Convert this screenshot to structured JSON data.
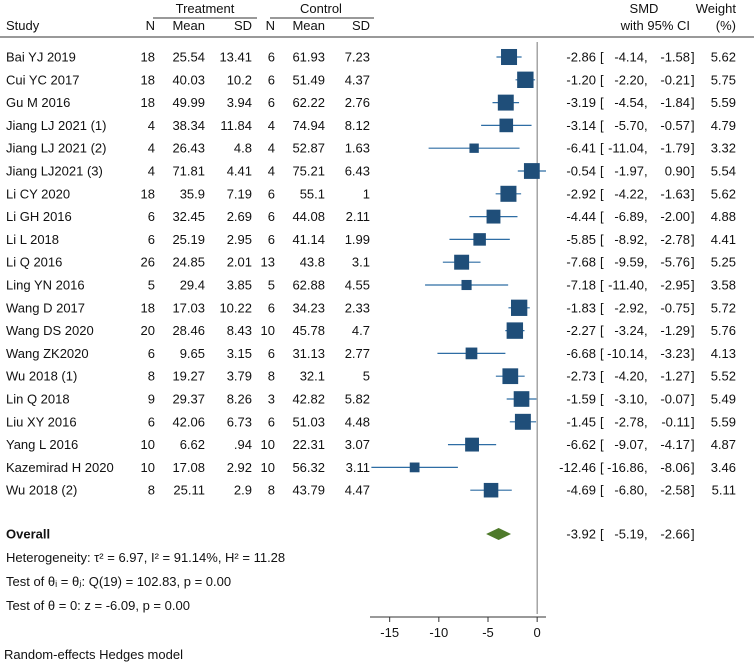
{
  "chart_data": {
    "type": "forest",
    "model_note": "Random-effects Hedges model",
    "group_headers": {
      "treatment": "Treatment",
      "control": "Control"
    },
    "column_headers": {
      "study": "Study",
      "n_t": "N",
      "mean_t": "Mean",
      "sd_t": "SD",
      "n_c": "N",
      "mean_c": "Mean",
      "sd_c": "SD",
      "effect_line1": "SMD",
      "effect_line2": "with 95% CI",
      "weight_line1": "Weight",
      "weight_line2": "(%)"
    },
    "studies": [
      {
        "study": "Bai YJ 2019",
        "n_t": "18",
        "mean_t": "25.54",
        "sd_t": "13.41",
        "n_c": "6",
        "mean_c": "61.93",
        "sd_c": "7.23",
        "smd": -2.86,
        "lo": -4.14,
        "hi": -1.58,
        "smd_text": "-2.86",
        "lo_text": "-4.14",
        "hi_text": "-1.58",
        "weight": "5.62"
      },
      {
        "study": "Cui YC 2017",
        "n_t": "18",
        "mean_t": "40.03",
        "sd_t": "10.2",
        "n_c": "6",
        "mean_c": "51.49",
        "sd_c": "4.37",
        "smd": -1.2,
        "lo": -2.2,
        "hi": -0.21,
        "smd_text": "-1.20",
        "lo_text": "-2.20",
        "hi_text": "-0.21",
        "weight": "5.75"
      },
      {
        "study": "Gu M 2016",
        "n_t": "18",
        "mean_t": "49.99",
        "sd_t": "3.94",
        "n_c": "6",
        "mean_c": "62.22",
        "sd_c": "2.76",
        "smd": -3.19,
        "lo": -4.54,
        "hi": -1.84,
        "smd_text": "-3.19",
        "lo_text": "-4.54",
        "hi_text": "-1.84",
        "weight": "5.59"
      },
      {
        "study": "Jiang LJ 2021 (1)",
        "n_t": "4",
        "mean_t": "38.34",
        "sd_t": "11.84",
        "n_c": "4",
        "mean_c": "74.94",
        "sd_c": "8.12",
        "smd": -3.14,
        "lo": -5.7,
        "hi": -0.57,
        "smd_text": "-3.14",
        "lo_text": "-5.70",
        "hi_text": "-0.57",
        "weight": "4.79"
      },
      {
        "study": "Jiang LJ 2021 (2)",
        "n_t": "4",
        "mean_t": "26.43",
        "sd_t": "4.8",
        "n_c": "4",
        "mean_c": "52.87",
        "sd_c": "1.63",
        "smd": -6.41,
        "lo": -11.04,
        "hi": -1.79,
        "smd_text": "-6.41",
        "lo_text": "-11.04",
        "hi_text": "-1.79",
        "weight": "3.32"
      },
      {
        "study": "Jiang LJ2021 (3)",
        "n_t": "4",
        "mean_t": "71.81",
        "sd_t": "4.41",
        "n_c": "4",
        "mean_c": "75.21",
        "sd_c": "6.43",
        "smd": -0.54,
        "lo": -1.97,
        "hi": 0.9,
        "smd_text": "-0.54",
        "lo_text": "-1.97",
        "hi_text": "0.90",
        "weight": "5.54"
      },
      {
        "study": "Li CY 2020",
        "n_t": "18",
        "mean_t": "35.9",
        "sd_t": "7.19",
        "n_c": "6",
        "mean_c": "55.1",
        "sd_c": "1",
        "smd": -2.92,
        "lo": -4.22,
        "hi": -1.63,
        "smd_text": "-2.92",
        "lo_text": "-4.22",
        "hi_text": "-1.63",
        "weight": "5.62"
      },
      {
        "study": "Li GH 2016",
        "n_t": "6",
        "mean_t": "32.45",
        "sd_t": "2.69",
        "n_c": "6",
        "mean_c": "44.08",
        "sd_c": "2.11",
        "smd": -4.44,
        "lo": -6.89,
        "hi": -2.0,
        "smd_text": "-4.44",
        "lo_text": "-6.89",
        "hi_text": "-2.00",
        "weight": "4.88"
      },
      {
        "study": "Li L 2018",
        "n_t": "6",
        "mean_t": "25.19",
        "sd_t": "2.95",
        "n_c": "6",
        "mean_c": "41.14",
        "sd_c": "1.99",
        "smd": -5.85,
        "lo": -8.92,
        "hi": -2.78,
        "smd_text": "-5.85",
        "lo_text": "-8.92",
        "hi_text": "-2.78",
        "weight": "4.41"
      },
      {
        "study": "Li Q 2016",
        "n_t": "26",
        "mean_t": "24.85",
        "sd_t": "2.01",
        "n_c": "13",
        "mean_c": "43.8",
        "sd_c": "3.1",
        "smd": -7.68,
        "lo": -9.59,
        "hi": -5.76,
        "smd_text": "-7.68",
        "lo_text": "-9.59",
        "hi_text": "-5.76",
        "weight": "5.25"
      },
      {
        "study": "Ling YN 2016",
        "n_t": "5",
        "mean_t": "29.4",
        "sd_t": "3.85",
        "n_c": "5",
        "mean_c": "62.88",
        "sd_c": "4.55",
        "smd": -7.18,
        "lo": -11.4,
        "hi": -2.95,
        "smd_text": "-7.18",
        "lo_text": "-11.40",
        "hi_text": "-2.95",
        "weight": "3.58"
      },
      {
        "study": "Wang D 2017",
        "n_t": "18",
        "mean_t": "17.03",
        "sd_t": "10.22",
        "n_c": "6",
        "mean_c": "34.23",
        "sd_c": "2.33",
        "smd": -1.83,
        "lo": -2.92,
        "hi": -0.75,
        "smd_text": "-1.83",
        "lo_text": "-2.92",
        "hi_text": "-0.75",
        "weight": "5.72"
      },
      {
        "study": "Wang DS 2020",
        "n_t": "20",
        "mean_t": "28.46",
        "sd_t": "8.43",
        "n_c": "10",
        "mean_c": "45.78",
        "sd_c": "4.7",
        "smd": -2.27,
        "lo": -3.24,
        "hi": -1.29,
        "smd_text": "-2.27",
        "lo_text": "-3.24",
        "hi_text": "-1.29",
        "weight": "5.76"
      },
      {
        "study": "Wang ZK2020",
        "n_t": "6",
        "mean_t": "9.65",
        "sd_t": "3.15",
        "n_c": "6",
        "mean_c": "31.13",
        "sd_c": "2.77",
        "smd": -6.68,
        "lo": -10.14,
        "hi": -3.23,
        "smd_text": "-6.68",
        "lo_text": "-10.14",
        "hi_text": "-3.23",
        "weight": "4.13"
      },
      {
        "study": "Wu 2018 (1)",
        "n_t": "8",
        "mean_t": "19.27",
        "sd_t": "3.79",
        "n_c": "8",
        "mean_c": "32.1",
        "sd_c": "5",
        "smd": -2.73,
        "lo": -4.2,
        "hi": -1.27,
        "smd_text": "-2.73",
        "lo_text": "-4.20",
        "hi_text": "-1.27",
        "weight": "5.52"
      },
      {
        "study": "Lin Q 2018",
        "n_t": "9",
        "mean_t": "29.37",
        "sd_t": "8.26",
        "n_c": "3",
        "mean_c": "42.82",
        "sd_c": "5.82",
        "smd": -1.59,
        "lo": -3.1,
        "hi": -0.07,
        "smd_text": "-1.59",
        "lo_text": "-3.10",
        "hi_text": "-0.07",
        "weight": "5.49"
      },
      {
        "study": "Liu XY 2016",
        "n_t": "6",
        "mean_t": "42.06",
        "sd_t": "6.73",
        "n_c": "6",
        "mean_c": "51.03",
        "sd_c": "4.48",
        "smd": -1.45,
        "lo": -2.78,
        "hi": -0.11,
        "smd_text": "-1.45",
        "lo_text": "-2.78",
        "hi_text": "-0.11",
        "weight": "5.59"
      },
      {
        "study": "Yang L 2016",
        "n_t": "10",
        "mean_t": "6.62",
        "sd_t": ".94",
        "n_c": "10",
        "mean_c": "22.31",
        "sd_c": "3.07",
        "smd": -6.62,
        "lo": -9.07,
        "hi": -4.17,
        "smd_text": "-6.62",
        "lo_text": "-9.07",
        "hi_text": "-4.17",
        "weight": "4.87"
      },
      {
        "study": "Kazemirad H 2020",
        "n_t": "10",
        "mean_t": "17.08",
        "sd_t": "2.92",
        "n_c": "10",
        "mean_c": "56.32",
        "sd_c": "3.11",
        "smd": -12.46,
        "lo": -16.86,
        "hi": -8.06,
        "smd_text": "-12.46",
        "lo_text": "-16.86",
        "hi_text": "-8.06",
        "weight": "3.46"
      },
      {
        "study": "Wu 2018 (2)",
        "n_t": "8",
        "mean_t": "25.11",
        "sd_t": "2.9",
        "n_c": "8",
        "mean_c": "43.79",
        "sd_c": "4.47",
        "smd": -4.69,
        "lo": -6.8,
        "hi": -2.58,
        "smd_text": "-4.69",
        "lo_text": "-6.80",
        "hi_text": "-2.58",
        "weight": "5.11"
      }
    ],
    "overall": {
      "label": "Overall",
      "smd": -3.92,
      "lo": -5.19,
      "hi": -2.66,
      "smd_text": "-3.92",
      "lo_text": "-5.19",
      "hi_text": "-2.66"
    },
    "stats": {
      "heterogeneity": "Heterogeneity: τ² = 6.97, I² = 91.14%, H² = 11.28",
      "test_theta_equal": "Test of θᵢ = θⱼ: Q(19) = 102.83, p = 0.00",
      "test_theta_zero": "Test of θ = 0: z = -6.09, p = 0.00"
    },
    "x_axis": {
      "ticks": [
        -15,
        -10,
        -5,
        0
      ],
      "tick_labels": [
        "-15",
        "-10",
        "-5",
        "0"
      ],
      "xlim": [
        -17,
        0.9
      ]
    },
    "colors": {
      "marker": "#1f4e79",
      "line": "#2e6da4",
      "diamond": "#4e7a2a",
      "rule": "#333333",
      "zero": "#777777"
    }
  }
}
